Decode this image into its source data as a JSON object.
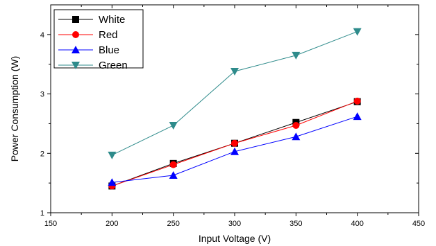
{
  "chart_data": {
    "type": "line",
    "title": "",
    "xlabel": "Input Voltage (V)",
    "ylabel": "Power Consumption (W)",
    "xlim": [
      150,
      450
    ],
    "ylim": [
      1,
      4.5
    ],
    "x_ticks": [
      "150",
      "200",
      "250",
      "300",
      "350",
      "400",
      "450"
    ],
    "y_ticks": [
      "1",
      "2",
      "3",
      "4"
    ],
    "grid": false,
    "legend_position": "top-left",
    "x": [
      200,
      250,
      300,
      350,
      400
    ],
    "series": [
      {
        "name": "White",
        "color": "#000000",
        "marker": "square",
        "values": [
          1.45,
          1.83,
          2.17,
          2.52,
          2.87
        ]
      },
      {
        "name": "Red",
        "color": "#ff0000",
        "marker": "circle",
        "values": [
          1.45,
          1.81,
          2.17,
          2.47,
          2.88
        ]
      },
      {
        "name": "Blue",
        "color": "#0000ff",
        "marker": "triangle-up",
        "values": [
          1.51,
          1.63,
          2.03,
          2.28,
          2.62
        ]
      },
      {
        "name": "Green",
        "color": "#2e8b8b",
        "marker": "triangle-down",
        "values": [
          1.97,
          2.47,
          3.38,
          3.65,
          4.05
        ]
      }
    ]
  }
}
